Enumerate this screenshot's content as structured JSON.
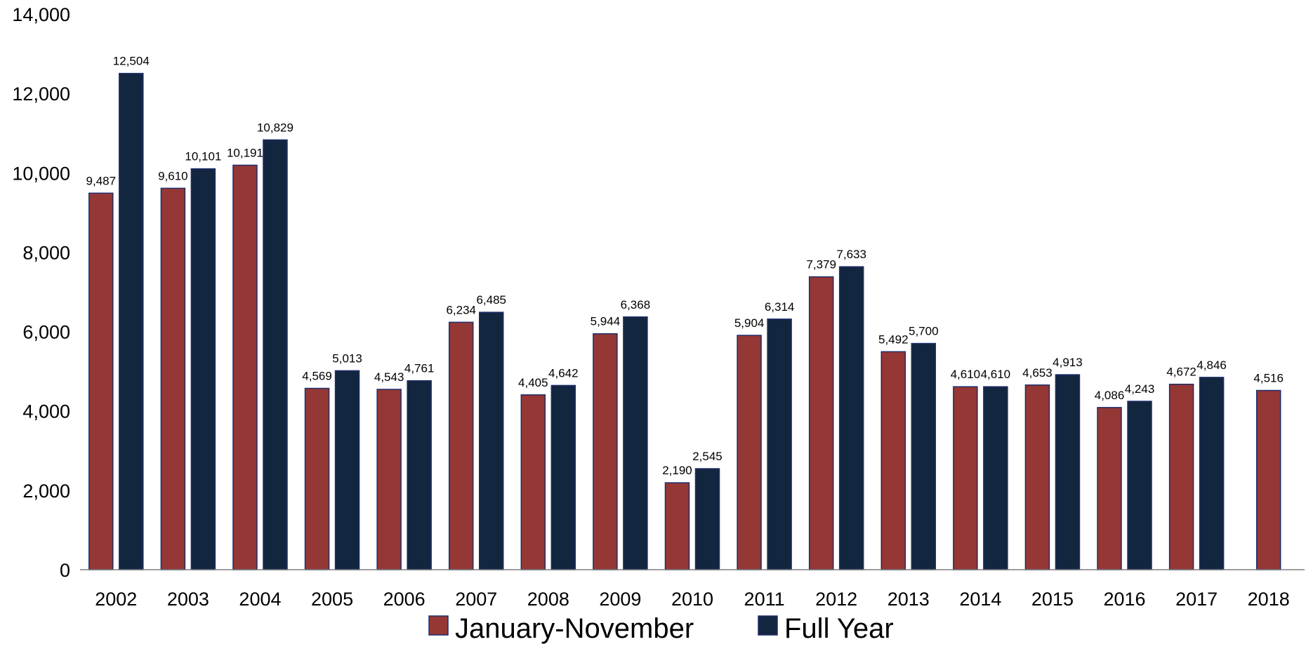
{
  "chart_data": {
    "type": "bar",
    "title": "",
    "xlabel": "",
    "ylabel": "",
    "ylim": [
      0,
      14000
    ],
    "yticks": [
      0,
      2000,
      4000,
      6000,
      8000,
      10000,
      12000,
      14000
    ],
    "ytick_labels": [
      "0",
      "2,000",
      "4,000",
      "6,000",
      "8,000",
      "10,000",
      "12,000",
      "14,000"
    ],
    "grid": false,
    "legend_position": "bottom",
    "categories": [
      "2002",
      "2003",
      "2004",
      "2005",
      "2006",
      "2007",
      "2008",
      "2009",
      "2010",
      "2011",
      "2012",
      "2013",
      "2014",
      "2015",
      "2016",
      "2017",
      "2018"
    ],
    "series": [
      {
        "name": "January-November",
        "color": "#953735",
        "values": [
          9487,
          9610,
          10191,
          4569,
          4543,
          6234,
          4405,
          5944,
          2190,
          5904,
          7379,
          5492,
          4610,
          4653,
          4086,
          4672,
          4516
        ],
        "labels": [
          "9,487",
          "9,610",
          "10,191",
          "4,569",
          "4,543",
          "6,234",
          "4,405",
          "5,944",
          "2,190",
          "5,904",
          "7,379",
          "5,492",
          "4,610",
          "4,653",
          "4,086",
          "4,672",
          "4,516"
        ]
      },
      {
        "name": "Full Year",
        "color": "#12263f",
        "values": [
          12504,
          10101,
          10829,
          5013,
          4761,
          6485,
          4642,
          6368,
          2545,
          6314,
          7633,
          5700,
          4610,
          4913,
          4243,
          4846,
          null
        ],
        "labels": [
          "12,504",
          "10,101",
          "10,829",
          "5,013",
          "4,761",
          "6,485",
          "4,642",
          "6,368",
          "2,545",
          "6,314",
          "7,633",
          "5,700",
          "4,610",
          "4,913",
          "4,243",
          "4,846",
          null
        ]
      }
    ]
  }
}
